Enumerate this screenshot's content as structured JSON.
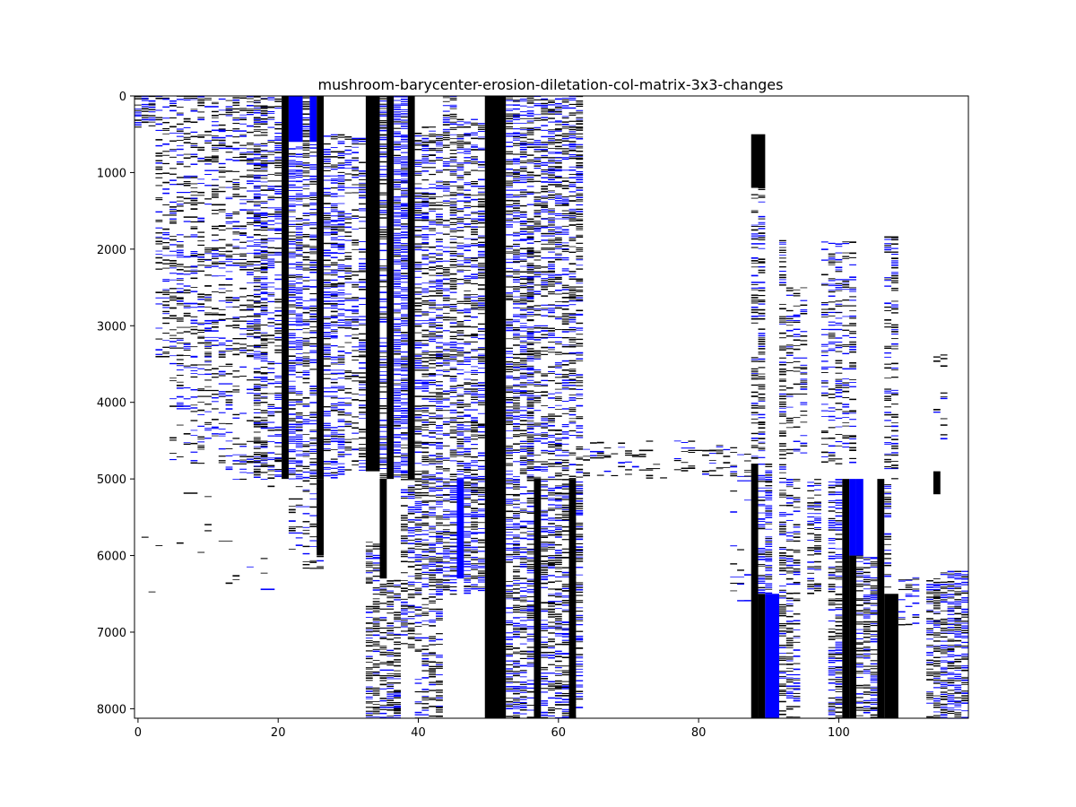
{
  "chart_data": {
    "type": "heatmap",
    "title": "mushroom-barycenter-erosion-diletation-col-matrix-3x3-changes",
    "xlabel": "",
    "ylabel": "",
    "xlim": [
      -0.5,
      118.5
    ],
    "ylim": [
      8124,
      0
    ],
    "n_columns": 119,
    "n_rows": 8124,
    "x_ticks": [
      0,
      20,
      40,
      60,
      80,
      100
    ],
    "x_tick_labels": [
      "0",
      "20",
      "40",
      "60",
      "80",
      "100"
    ],
    "y_ticks": [
      0,
      1000,
      2000,
      3000,
      4000,
      5000,
      6000,
      7000,
      8000
    ],
    "y_tick_labels": [
      "0",
      "1000",
      "2000",
      "3000",
      "4000",
      "5000",
      "6000",
      "7000",
      "8000"
    ],
    "colors": {
      "background": "#ffffff",
      "value_a": "#000000",
      "value_b": "#0000ff"
    },
    "legend": "none",
    "grid": false,
    "segments": [
      {
        "c0": 0,
        "c1": 3,
        "y0": 0,
        "y1": 400,
        "kind": "mix",
        "density": 0.7,
        "blue": 0.6
      },
      {
        "c0": 3,
        "c1": 19,
        "y0": 0,
        "y1": 3400,
        "kind": "mix",
        "density": 0.35,
        "blue": 0.4
      },
      {
        "c0": 5,
        "c1": 19,
        "y0": 3400,
        "y1": 4800,
        "kind": "mix",
        "density": 0.25,
        "blue": 0.4
      },
      {
        "c0": 13,
        "c1": 21,
        "y0": 4700,
        "y1": 5000,
        "kind": "mix",
        "density": 0.3,
        "blue": 0.5
      },
      {
        "c0": 17,
        "c1": 21,
        "y0": 0,
        "y1": 4900,
        "kind": "mix",
        "density": 0.4,
        "blue": 0.5
      },
      {
        "c0": 21,
        "c1": 22,
        "y0": 0,
        "y1": 5000,
        "kind": "solid",
        "color": "value_a"
      },
      {
        "c0": 22,
        "c1": 24,
        "y0": 0,
        "y1": 600,
        "kind": "solid",
        "color": "value_b"
      },
      {
        "c0": 22,
        "c1": 24,
        "y0": 600,
        "y1": 5000,
        "kind": "mix",
        "density": 0.6,
        "blue": 0.75
      },
      {
        "c0": 24,
        "c1": 25,
        "y0": 0,
        "y1": 5000,
        "kind": "mix",
        "density": 0.5,
        "blue": 0.3
      },
      {
        "c0": 25,
        "c1": 26,
        "y0": 0,
        "y1": 600,
        "kind": "solid",
        "color": "value_b"
      },
      {
        "c0": 25,
        "c1": 26,
        "y0": 600,
        "y1": 5000,
        "kind": "mix",
        "density": 0.55,
        "blue": 0.6
      },
      {
        "c0": 26,
        "c1": 27,
        "y0": 0,
        "y1": 5000,
        "kind": "solid",
        "color": "value_a"
      },
      {
        "c0": 27,
        "c1": 30,
        "y0": 500,
        "y1": 5000,
        "kind": "mix",
        "density": 0.55,
        "blue": 0.7
      },
      {
        "c0": 30,
        "c1": 33,
        "y0": 500,
        "y1": 4900,
        "kind": "mix",
        "density": 0.35,
        "blue": 0.45
      },
      {
        "c0": 33,
        "c1": 35,
        "y0": 0,
        "y1": 4900,
        "kind": "solid",
        "color": "value_a"
      },
      {
        "c0": 35,
        "c1": 36,
        "y0": 0,
        "y1": 5000,
        "kind": "mix",
        "density": 0.6,
        "blue": 0.5
      },
      {
        "c0": 36,
        "c1": 37,
        "y0": 0,
        "y1": 5000,
        "kind": "solid",
        "color": "value_a"
      },
      {
        "c0": 37,
        "c1": 39,
        "y0": 0,
        "y1": 5000,
        "kind": "mix",
        "density": 0.75,
        "blue": 0.85
      },
      {
        "c0": 39,
        "c1": 40,
        "y0": 0,
        "y1": 5000,
        "kind": "solid",
        "color": "value_a"
      },
      {
        "c0": 40,
        "c1": 44,
        "y0": 400,
        "y1": 5000,
        "kind": "mix",
        "density": 0.5,
        "blue": 0.5
      },
      {
        "c0": 44,
        "c1": 45,
        "y0": 0,
        "y1": 5000,
        "kind": "mix",
        "density": 0.45,
        "blue": 0.4
      },
      {
        "c0": 45,
        "c1": 46,
        "y0": 0,
        "y1": 5000,
        "kind": "mix",
        "density": 0.6,
        "blue": 0.3
      },
      {
        "c0": 46,
        "c1": 50,
        "y0": 300,
        "y1": 5000,
        "kind": "mix",
        "density": 0.5,
        "blue": 0.5
      },
      {
        "c0": 50,
        "c1": 53,
        "y0": 0,
        "y1": 8124,
        "kind": "solid",
        "color": "value_a"
      },
      {
        "c0": 53,
        "c1": 57,
        "y0": 0,
        "y1": 8124,
        "kind": "mix",
        "density": 0.55,
        "blue": 0.5
      },
      {
        "c0": 57,
        "c1": 64,
        "y0": 0,
        "y1": 1600,
        "kind": "mix",
        "density": 0.6,
        "blue": 0.5
      },
      {
        "c0": 56,
        "c1": 64,
        "y0": 1600,
        "y1": 5000,
        "kind": "mix",
        "density": 0.45,
        "blue": 0.4
      },
      {
        "c0": 57,
        "c1": 58,
        "y0": 5000,
        "y1": 8124,
        "kind": "solid",
        "color": "value_a"
      },
      {
        "c0": 58,
        "c1": 64,
        "y0": 5000,
        "y1": 8124,
        "kind": "mix",
        "density": 0.55,
        "blue": 0.45
      },
      {
        "c0": 62,
        "c1": 63,
        "y0": 5000,
        "y1": 8124,
        "kind": "solid",
        "color": "value_a"
      },
      {
        "c0": 1,
        "c1": 20,
        "y0": 5000,
        "y1": 6500,
        "kind": "mix",
        "density": 0.02,
        "blue": 0.2
      },
      {
        "c0": 22,
        "c1": 27,
        "y0": 5000,
        "y1": 6200,
        "kind": "mix",
        "density": 0.25,
        "blue": 0.3
      },
      {
        "c0": 26,
        "c1": 27,
        "y0": 5000,
        "y1": 6000,
        "kind": "solid",
        "color": "value_a"
      },
      {
        "c0": 33,
        "c1": 35,
        "y0": 5800,
        "y1": 8124,
        "kind": "mix",
        "density": 0.5,
        "blue": 0.3
      },
      {
        "c0": 35,
        "c1": 36,
        "y0": 5000,
        "y1": 6300,
        "kind": "solid",
        "color": "value_a"
      },
      {
        "c0": 35,
        "c1": 38,
        "y0": 6300,
        "y1": 8124,
        "kind": "mix",
        "density": 0.5,
        "blue": 0.3
      },
      {
        "c0": 38,
        "c1": 40,
        "y0": 5000,
        "y1": 7200,
        "kind": "mix",
        "density": 0.5,
        "blue": 0.35
      },
      {
        "c0": 40,
        "c1": 46,
        "y0": 5000,
        "y1": 6500,
        "kind": "mix",
        "density": 0.6,
        "blue": 0.55
      },
      {
        "c0": 46,
        "c1": 47,
        "y0": 5000,
        "y1": 6300,
        "kind": "solid",
        "color": "value_b"
      },
      {
        "c0": 47,
        "c1": 50,
        "y0": 5000,
        "y1": 6500,
        "kind": "mix",
        "density": 0.55,
        "blue": 0.5
      },
      {
        "c0": 40,
        "c1": 44,
        "y0": 6500,
        "y1": 8124,
        "kind": "mix",
        "density": 0.4,
        "blue": 0.3
      },
      {
        "c0": 64,
        "c1": 88,
        "y0": 4500,
        "y1": 5000,
        "kind": "mix",
        "density": 0.15,
        "blue": 0.3
      },
      {
        "c0": 84,
        "c1": 88,
        "y0": 4800,
        "y1": 6600,
        "kind": "mix",
        "density": 0.05,
        "blue": 0.2
      },
      {
        "c0": 88,
        "c1": 90,
        "y0": 500,
        "y1": 1200,
        "kind": "solid",
        "color": "value_a"
      },
      {
        "c0": 88,
        "c1": 90,
        "y0": 1200,
        "y1": 4800,
        "kind": "mix",
        "density": 0.45,
        "blue": 0.3
      },
      {
        "c0": 88,
        "c1": 89,
        "y0": 4800,
        "y1": 8124,
        "kind": "solid",
        "color": "value_a"
      },
      {
        "c0": 89,
        "c1": 91,
        "y0": 4800,
        "y1": 6500,
        "kind": "mix",
        "density": 0.7,
        "blue": 0.7
      },
      {
        "c0": 89,
        "c1": 90,
        "y0": 6500,
        "y1": 8124,
        "kind": "solid",
        "color": "value_a"
      },
      {
        "c0": 90,
        "c1": 92,
        "y0": 6500,
        "y1": 8124,
        "kind": "solid",
        "color": "value_b"
      },
      {
        "c0": 92,
        "c1": 93,
        "y0": 1800,
        "y1": 8124,
        "kind": "mix",
        "density": 0.5,
        "blue": 0.25
      },
      {
        "c0": 93,
        "c1": 96,
        "y0": 2500,
        "y1": 4700,
        "kind": "mix",
        "density": 0.3,
        "blue": 0.4
      },
      {
        "c0": 93,
        "c1": 95,
        "y0": 5000,
        "y1": 8124,
        "kind": "mix",
        "density": 0.4,
        "blue": 0.4
      },
      {
        "c0": 96,
        "c1": 98,
        "y0": 5000,
        "y1": 6500,
        "kind": "mix",
        "density": 0.5,
        "blue": 0.4
      },
      {
        "c0": 98,
        "c1": 103,
        "y0": 1900,
        "y1": 4800,
        "kind": "mix",
        "density": 0.35,
        "blue": 0.5
      },
      {
        "c0": 99,
        "c1": 101,
        "y0": 5000,
        "y1": 8124,
        "kind": "mix",
        "density": 0.55,
        "blue": 0.5
      },
      {
        "c0": 101,
        "c1": 102,
        "y0": 5000,
        "y1": 8124,
        "kind": "solid",
        "color": "value_a"
      },
      {
        "c0": 102,
        "c1": 103,
        "y0": 5000,
        "y1": 6000,
        "kind": "solid",
        "color": "value_b"
      },
      {
        "c0": 102,
        "c1": 103,
        "y0": 6000,
        "y1": 8124,
        "kind": "solid",
        "color": "value_a"
      },
      {
        "c0": 103,
        "c1": 104,
        "y0": 5000,
        "y1": 6000,
        "kind": "solid",
        "color": "value_b"
      },
      {
        "c0": 103,
        "c1": 106,
        "y0": 6000,
        "y1": 8124,
        "kind": "mix",
        "density": 0.55,
        "blue": 0.5
      },
      {
        "c0": 106,
        "c1": 107,
        "y0": 5000,
        "y1": 8124,
        "kind": "solid",
        "color": "value_a"
      },
      {
        "c0": 107,
        "c1": 109,
        "y0": 1800,
        "y1": 5000,
        "kind": "mix",
        "density": 0.4,
        "blue": 0.35
      },
      {
        "c0": 107,
        "c1": 108,
        "y0": 5000,
        "y1": 6500,
        "kind": "mix",
        "density": 0.55,
        "blue": 0.4
      },
      {
        "c0": 107,
        "c1": 109,
        "y0": 6500,
        "y1": 8124,
        "kind": "solid",
        "color": "value_a"
      },
      {
        "c0": 109,
        "c1": 112,
        "y0": 6200,
        "y1": 6900,
        "kind": "mix",
        "density": 0.25,
        "blue": 0.4
      },
      {
        "c0": 114,
        "c1": 116,
        "y0": 3300,
        "y1": 4600,
        "kind": "mix",
        "density": 0.15,
        "blue": 0.2
      },
      {
        "c0": 114,
        "c1": 115,
        "y0": 4900,
        "y1": 5200,
        "kind": "solid",
        "color": "value_a"
      },
      {
        "c0": 113,
        "c1": 115,
        "y0": 6300,
        "y1": 8124,
        "kind": "mix",
        "density": 0.6,
        "blue": 0.3
      },
      {
        "c0": 115,
        "c1": 119,
        "y0": 6200,
        "y1": 8124,
        "kind": "mix",
        "density": 0.65,
        "blue": 0.55
      }
    ]
  }
}
